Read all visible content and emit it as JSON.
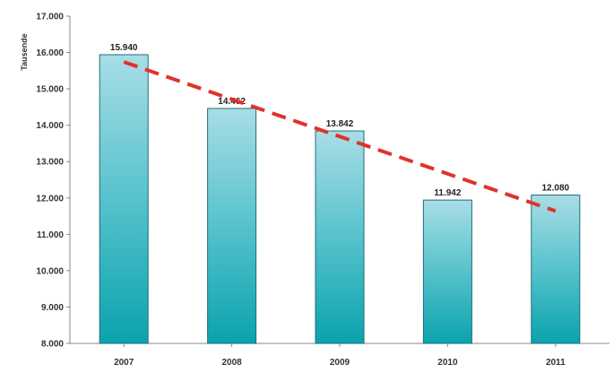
{
  "chart_data": {
    "type": "bar",
    "title": "",
    "xlabel": "",
    "ylabel": "Tausende",
    "categories": [
      "2007",
      "2008",
      "2009",
      "2010",
      "2011"
    ],
    "values": [
      15940,
      14462,
      13842,
      11942,
      12080
    ],
    "value_labels": [
      "15.940",
      "14.462",
      "13.842",
      "11.942",
      "12.080"
    ],
    "ylim": [
      8000,
      17000
    ],
    "yticks": [
      8000,
      9000,
      10000,
      11000,
      12000,
      13000,
      14000,
      15000,
      16000,
      17000
    ],
    "ytick_labels": [
      "8.000",
      "9.000",
      "10.000",
      "11.000",
      "12.000",
      "13.000",
      "14.000",
      "15.000",
      "16.000",
      "17.000"
    ],
    "trendline": {
      "style": "dashed",
      "start": 15740,
      "end": 11640,
      "color": "#e0322a"
    },
    "colors": {
      "bar_top": "#a9dde6",
      "bar_bottom": "#0aa3ad",
      "bar_edge": "#1d6f78",
      "axis": "#888888"
    },
    "grid": false,
    "legend": "none"
  }
}
